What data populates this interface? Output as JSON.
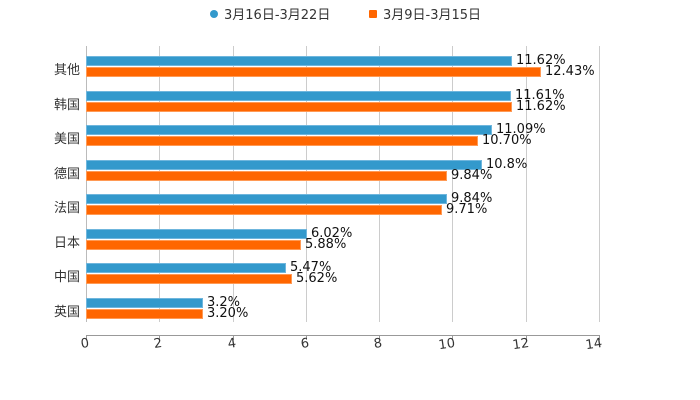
{
  "legend": [
    {
      "label": "3月16日-3月22日",
      "color": "#3399cc",
      "marker": "circle"
    },
    {
      "label": "3月9日-3月15日",
      "color": "#ff6600",
      "marker": "square"
    }
  ],
  "chart_data": {
    "type": "bar",
    "orientation": "horizontal",
    "title": "",
    "xlabel": "",
    "ylabel": "",
    "xlim": [
      0,
      14
    ],
    "x_ticks": [
      "0",
      "2",
      "4",
      "6",
      "8",
      "10",
      "12",
      "14"
    ],
    "grid": true,
    "legend_position": "top",
    "categories": [
      "其他",
      "韩国",
      "美国",
      "德国",
      "法国",
      "日本",
      "中国",
      "英国"
    ],
    "series": [
      {
        "name": "3月16日-3月22日",
        "color": "#3399cc",
        "values": [
          11.62,
          11.61,
          11.09,
          10.8,
          9.84,
          6.02,
          5.47,
          3.2
        ],
        "labels": [
          "11.62%",
          "11.61%",
          "11.09%",
          "10.8%",
          "9.84%",
          "6.02%",
          "5.47%",
          "3.2%"
        ]
      },
      {
        "name": "3月9日-3月15日",
        "color": "#ff6600",
        "values": [
          12.43,
          11.62,
          10.7,
          9.84,
          9.71,
          5.88,
          5.62,
          3.2
        ],
        "labels": [
          "12.43%",
          "11.62%",
          "10.70%",
          "9.84%",
          "9.71%",
          "5.88%",
          "5.62%",
          "3.20%"
        ]
      }
    ]
  }
}
